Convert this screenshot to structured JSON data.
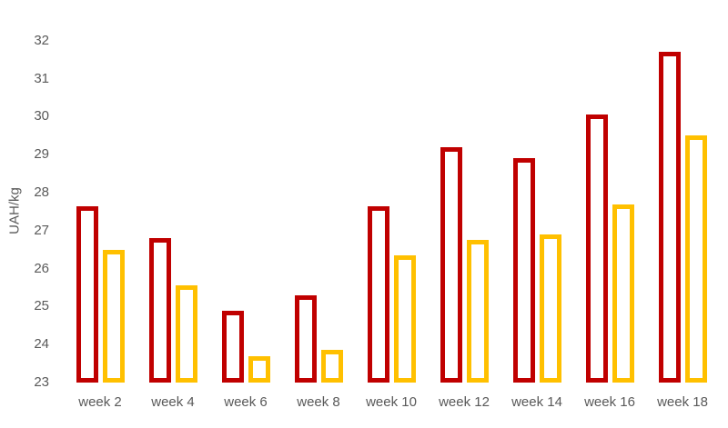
{
  "chart_data": {
    "type": "bar",
    "title": "",
    "xlabel": "",
    "ylabel": "UAH/kg",
    "ylim": [
      23,
      32
    ],
    "y_ticks": [
      23,
      24,
      25,
      26,
      27,
      28,
      29,
      30,
      31,
      32
    ],
    "categories": [
      "week 2",
      "week 4",
      "week 6",
      "week 8",
      "week 10",
      "week 12",
      "week 14",
      "week 16",
      "week 18"
    ],
    "series": [
      {
        "name": "dark-red-series",
        "color": "#C00000",
        "values": [
          27.65,
          26.8,
          24.9,
          25.3,
          27.65,
          29.2,
          28.9,
          30.05,
          31.7
        ]
      },
      {
        "name": "gold-series",
        "color": "#FFC000",
        "values": [
          26.5,
          25.55,
          23.7,
          23.85,
          26.35,
          26.75,
          26.9,
          27.7,
          29.5
        ]
      }
    ],
    "bar_style": "hollow-outline",
    "grid": false,
    "legend_position": "none",
    "axis_text_color": "#595959",
    "background_color": "#FFFFFF"
  }
}
